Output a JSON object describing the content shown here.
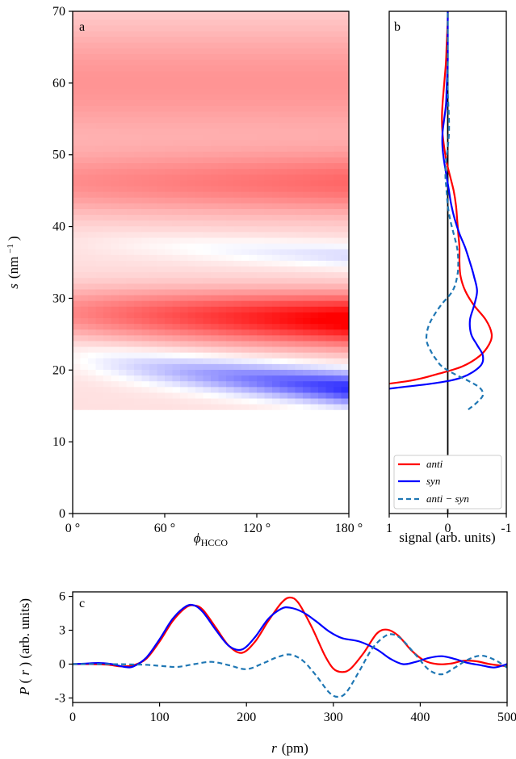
{
  "chart_data": [
    {
      "panel_label": "a",
      "type": "heatmap",
      "xlabel": "ϕHCCO",
      "xlabel_main": "ϕ",
      "xlabel_sub": "HCCO",
      "ylabel": "s (nm⁻¹)",
      "ylabel_var": "s",
      "ylabel_unit": "(nm",
      "ylabel_exp": "−1",
      "ylabel_close": ")",
      "xlim": [
        0,
        180
      ],
      "ylim": [
        0,
        70
      ],
      "xticks": [
        "0 °",
        "60 °",
        "120 °",
        "180 °"
      ],
      "xtick_values": [
        0,
        60,
        120,
        180
      ],
      "yticks": [
        0,
        10,
        20,
        30,
        40,
        50,
        60,
        70
      ],
      "s_min": 14.5,
      "colormap": "blue-white-red (bwr)",
      "positive_color": "#ff0000",
      "negative_color": "#0000ff",
      "features": [
        {
          "s_center_at_0": 22,
          "s_center_at_180": 17.5,
          "sign": "negative",
          "peak_intensity": 0.85
        },
        {
          "s_center_at_0": 28,
          "s_center_at_180": 27,
          "sign": "positive",
          "peak_intensity": 0.9
        },
        {
          "s_center_at_0": 38,
          "s_center_at_180": 36,
          "sign": "near zero",
          "peak_intensity": 0.05
        },
        {
          "s_center_at_0": 46,
          "s_center_at_180": 46,
          "sign": "positive",
          "peak_intensity": 0.45
        },
        {
          "s_center_at_0": 60,
          "s_center_at_180": 60,
          "sign": "positive",
          "peak_intensity": 0.3
        }
      ]
    },
    {
      "panel_label": "b",
      "type": "line",
      "xlabel": "signal (arb. units)",
      "xticks": [
        "1",
        "0",
        "-1"
      ],
      "xlim": [
        1,
        -1
      ],
      "ylim": [
        0,
        70
      ],
      "series": [
        {
          "name": "anti",
          "color": "#ff0000",
          "style": "solid",
          "s": [
            17.5,
            18.5,
            19.5,
            20.5,
            22,
            23.5,
            25,
            27,
            29,
            31,
            33,
            35,
            37,
            39,
            41,
            43,
            45,
            47,
            49,
            51,
            53,
            55,
            57,
            59,
            61,
            63,
            65,
            67,
            69,
            70.5
          ],
          "signal": [
            1.6,
            0.65,
            0.15,
            -0.25,
            -0.55,
            -0.7,
            -0.75,
            -0.65,
            -0.45,
            -0.3,
            -0.22,
            -0.2,
            -0.2,
            -0.18,
            -0.16,
            -0.14,
            -0.1,
            -0.04,
            0.02,
            0.06,
            0.09,
            0.1,
            0.09,
            0.07,
            0.05,
            0.03,
            0.02,
            0.01,
            0.0,
            0.0
          ]
        },
        {
          "name": "syn",
          "color": "#0000ff",
          "style": "solid",
          "s": [
            16.8,
            17.5,
            18.2,
            19,
            20.5,
            22,
            23.5,
            25,
            27,
            29,
            31,
            33,
            35,
            37,
            39,
            41,
            43,
            45,
            47,
            49,
            51,
            53,
            55,
            57,
            59,
            61,
            63,
            65,
            67,
            69,
            70.5
          ],
          "signal": [
            1.6,
            0.9,
            0.2,
            -0.25,
            -0.55,
            -0.6,
            -0.5,
            -0.4,
            -0.38,
            -0.45,
            -0.5,
            -0.45,
            -0.38,
            -0.3,
            -0.2,
            -0.12,
            -0.06,
            -0.02,
            0.02,
            0.06,
            0.09,
            0.09,
            0.06,
            0.03,
            0.02,
            0.01,
            0.0,
            0.0,
            0.0,
            0.0,
            0.0
          ]
        },
        {
          "name": "anti − syn",
          "color": "#1f77b4",
          "style": "dashed",
          "s": [
            14.5,
            15.5,
            16.5,
            17.5,
            18.5,
            19.5,
            20.5,
            21.5,
            22.5,
            24,
            25.5,
            27,
            29,
            31,
            33,
            35,
            37,
            39,
            41,
            43,
            45,
            47,
            49,
            51,
            53,
            55,
            57,
            59,
            61,
            63,
            65,
            67,
            69,
            70.5
          ],
          "signal": [
            -0.35,
            -0.5,
            -0.6,
            -0.55,
            -0.35,
            -0.1,
            0.1,
            0.2,
            0.28,
            0.36,
            0.35,
            0.28,
            0.12,
            -0.08,
            -0.16,
            -0.18,
            -0.16,
            -0.1,
            -0.04,
            0.0,
            0.02,
            0.04,
            0.03,
            0.0,
            -0.02,
            -0.02,
            -0.01,
            0.0,
            0.0,
            0.0,
            0.0,
            0.0,
            0.0,
            0.0
          ]
        }
      ]
    },
    {
      "panel_label": "c",
      "type": "line",
      "xlabel": "r (pm)",
      "xlabel_var": "r",
      "xlabel_unit": "(pm)",
      "ylabel": "P(r) (arb. units)",
      "ylabel_var": "P",
      "ylabel_rest": "(arb. units)",
      "xlim": [
        0,
        500
      ],
      "ylim": [
        -3.4,
        6.4
      ],
      "xticks": [
        0,
        100,
        200,
        300,
        400,
        500
      ],
      "yticks": [
        -3,
        0,
        3,
        6
      ],
      "series": [
        {
          "name": "anti",
          "color": "#ff0000",
          "style": "solid",
          "r": [
            0,
            20,
            40,
            55,
            70,
            85,
            100,
            115,
            130,
            140,
            150,
            165,
            180,
            195,
            210,
            225,
            240,
            250,
            260,
            275,
            290,
            300,
            310,
            320,
            335,
            350,
            362,
            375,
            390,
            405,
            420,
            435,
            450,
            465,
            480,
            500
          ],
          "P": [
            0,
            0,
            -0.05,
            -0.2,
            -0.1,
            0.5,
            2.0,
            3.8,
            5.0,
            5.2,
            4.8,
            3.2,
            1.6,
            1.0,
            2.0,
            3.8,
            5.4,
            5.9,
            5.4,
            3.3,
            0.8,
            -0.4,
            -0.7,
            -0.4,
            1.0,
            2.7,
            3.05,
            2.5,
            1.2,
            0.3,
            0.0,
            0.05,
            0.3,
            0.25,
            0.0,
            -0.2
          ]
        },
        {
          "name": "syn",
          "color": "#0000ff",
          "style": "solid",
          "r": [
            0,
            15,
            30,
            45,
            60,
            70,
            85,
            100,
            115,
            130,
            140,
            150,
            165,
            180,
            195,
            210,
            225,
            240,
            250,
            265,
            280,
            295,
            310,
            330,
            350,
            365,
            380,
            395,
            410,
            425,
            440,
            455,
            470,
            485,
            500
          ],
          "P": [
            0,
            0.05,
            0.1,
            0.0,
            -0.25,
            -0.2,
            0.6,
            2.2,
            4.0,
            5.1,
            5.2,
            4.6,
            3.0,
            1.6,
            1.3,
            2.4,
            4.0,
            4.9,
            5.0,
            4.6,
            3.8,
            2.9,
            2.3,
            2.0,
            1.3,
            0.5,
            0.0,
            0.2,
            0.55,
            0.7,
            0.45,
            0.1,
            -0.1,
            -0.3,
            0.0
          ]
        },
        {
          "name": "anti − syn",
          "color": "#1f77b4",
          "style": "dashed",
          "r": [
            0,
            40,
            80,
            100,
            120,
            140,
            160,
            180,
            200,
            220,
            235,
            250,
            265,
            280,
            295,
            305,
            315,
            330,
            345,
            360,
            370,
            380,
            395,
            410,
            425,
            440,
            455,
            470,
            485,
            500
          ],
          "P": [
            0,
            0,
            -0.05,
            -0.15,
            -0.25,
            0.0,
            0.2,
            -0.1,
            -0.45,
            0.1,
            0.6,
            0.85,
            0.3,
            -1.0,
            -2.5,
            -2.9,
            -2.5,
            -0.6,
            1.4,
            2.5,
            2.6,
            2.1,
            0.8,
            -0.5,
            -0.9,
            -0.3,
            0.4,
            0.75,
            0.4,
            -0.3
          ]
        }
      ]
    }
  ]
}
